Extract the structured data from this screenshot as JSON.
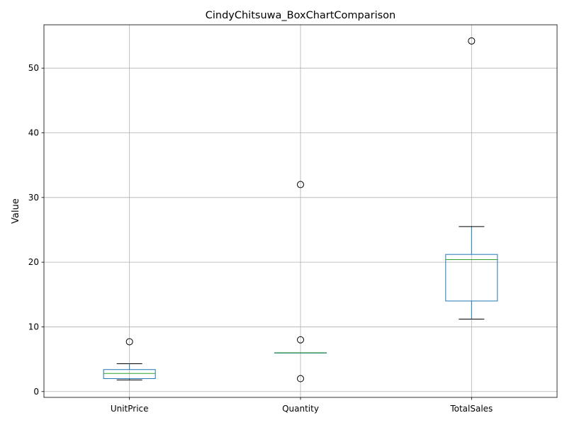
{
  "chart_data": {
    "type": "box",
    "title": "CindyChitsuwa_BoxChartComparison",
    "xlabel": "",
    "ylabel": "Value",
    "ylim": [
      -0.9,
      56.7
    ],
    "yticks": [
      0,
      10,
      20,
      30,
      40,
      50
    ],
    "grid": true,
    "categories": [
      "UnitPrice",
      "Quantity",
      "TotalSales"
    ],
    "boxes": [
      {
        "category": "UnitPrice",
        "whisker_low": 1.8,
        "q1": 2.0,
        "median": 2.8,
        "q3": 3.4,
        "whisker_high": 4.3,
        "outliers": [
          7.7
        ]
      },
      {
        "category": "Quantity",
        "whisker_low": 6.0,
        "q1": 6.0,
        "median": 6.0,
        "q3": 6.0,
        "whisker_high": 6.0,
        "outliers": [
          32.0,
          8.0,
          2.0
        ]
      },
      {
        "category": "TotalSales",
        "whisker_low": 11.2,
        "q1": 14.0,
        "median": 20.4,
        "q3": 21.2,
        "whisker_high": 25.5,
        "outliers": [
          54.2
        ]
      }
    ],
    "colors": {
      "box": "#1f77b4",
      "median": "#2ca02c",
      "whisker_cap": "#000000",
      "grid": "#b0b0b0",
      "frame": "#000000"
    }
  }
}
